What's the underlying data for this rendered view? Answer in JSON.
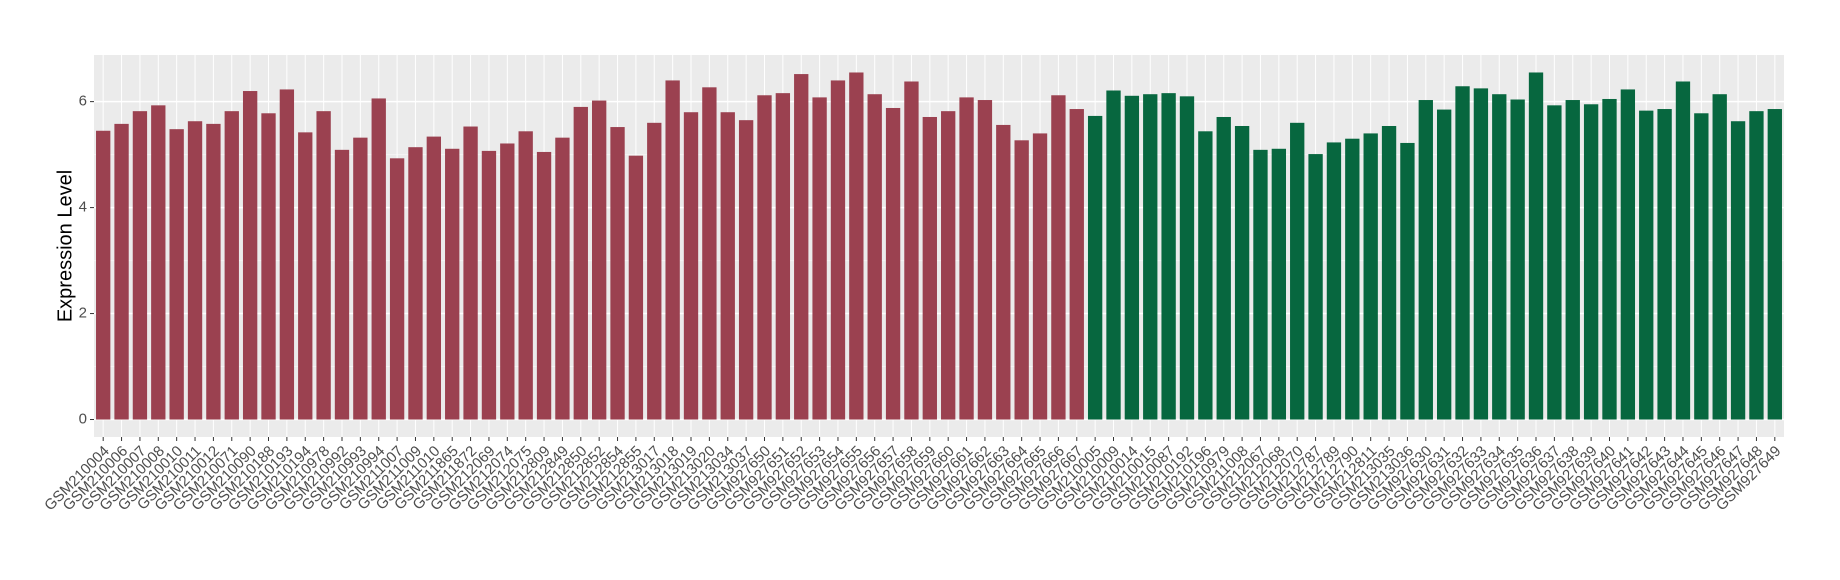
{
  "chart_data": {
    "type": "bar",
    "y_label": "Expression Level",
    "categories": [
      "GSM210004",
      "GSM210006",
      "GSM210007",
      "GSM210008",
      "GSM210010",
      "GSM210011",
      "GSM210012",
      "GSM210071",
      "GSM210090",
      "GSM210188",
      "GSM210193",
      "GSM210194",
      "GSM210978",
      "GSM210992",
      "GSM210993",
      "GSM210994",
      "GSM211007",
      "GSM211009",
      "GSM211010",
      "GSM211865",
      "GSM211872",
      "GSM212069",
      "GSM212074",
      "GSM212075",
      "GSM212809",
      "GSM212849",
      "GSM212850",
      "GSM212852",
      "GSM212854",
      "GSM212855",
      "GSM213017",
      "GSM213018",
      "GSM213019",
      "GSM213020",
      "GSM213034",
      "GSM213037",
      "GSM927650",
      "GSM927651",
      "GSM927652",
      "GSM927653",
      "GSM927654",
      "GSM927655",
      "GSM927656",
      "GSM927657",
      "GSM927658",
      "GSM927659",
      "GSM927660",
      "GSM927661",
      "GSM927662",
      "GSM927663",
      "GSM927664",
      "GSM927665",
      "GSM927666",
      "GSM927667",
      "GSM210005",
      "GSM210009",
      "GSM210014",
      "GSM210015",
      "GSM210087",
      "GSM210192",
      "GSM210196",
      "GSM210979",
      "GSM211008",
      "GSM212067",
      "GSM212068",
      "GSM212070",
      "GSM212787",
      "GSM212789",
      "GSM212790",
      "GSM212811",
      "GSM213035",
      "GSM213036",
      "GSM927630",
      "GSM927631",
      "GSM927632",
      "GSM927633",
      "GSM927634",
      "GSM927635",
      "GSM927636",
      "GSM927637",
      "GSM927638",
      "GSM927639",
      "GSM927640",
      "GSM927641",
      "GSM927642",
      "GSM927643",
      "GSM927644",
      "GSM927645",
      "GSM927646",
      "GSM927647",
      "GSM927648",
      "GSM927649"
    ],
    "values": [
      5.45,
      5.58,
      5.82,
      5.93,
      5.48,
      5.63,
      5.58,
      5.82,
      6.2,
      5.78,
      6.23,
      5.42,
      5.82,
      5.09,
      5.32,
      6.06,
      4.93,
      5.14,
      5.34,
      5.11,
      5.53,
      5.07,
      5.21,
      5.44,
      5.05,
      5.32,
      5.9,
      6.02,
      5.52,
      4.98,
      5.6,
      6.4,
      5.8,
      6.27,
      5.8,
      5.65,
      6.12,
      6.16,
      6.52,
      6.08,
      6.4,
      6.55,
      6.14,
      5.88,
      6.38,
      5.71,
      5.82,
      6.08,
      6.03,
      5.56,
      5.27,
      5.4,
      6.12,
      5.86,
      5.73,
      6.21,
      6.11,
      6.14,
      6.16,
      6.1,
      5.44,
      5.71,
      5.54,
      5.09,
      5.11,
      5.6,
      5.01,
      5.23,
      5.3,
      5.4,
      5.54,
      5.22,
      6.03,
      5.85,
      6.29,
      6.25,
      6.14,
      6.04,
      6.55,
      5.93,
      6.03,
      5.95,
      6.05,
      6.23,
      5.83,
      5.86,
      6.38,
      5.78,
      6.14,
      5.63,
      5.82,
      5.86
    ],
    "colors": [
      "#9b4150",
      "#9b4150",
      "#9b4150",
      "#9b4150",
      "#9b4150",
      "#9b4150",
      "#9b4150",
      "#9b4150",
      "#9b4150",
      "#9b4150",
      "#9b4150",
      "#9b4150",
      "#9b4150",
      "#9b4150",
      "#9b4150",
      "#9b4150",
      "#9b4150",
      "#9b4150",
      "#9b4150",
      "#9b4150",
      "#9b4150",
      "#9b4150",
      "#9b4150",
      "#9b4150",
      "#9b4150",
      "#9b4150",
      "#9b4150",
      "#9b4150",
      "#9b4150",
      "#9b4150",
      "#9b4150",
      "#9b4150",
      "#9b4150",
      "#9b4150",
      "#9b4150",
      "#9b4150",
      "#9b4150",
      "#9b4150",
      "#9b4150",
      "#9b4150",
      "#9b4150",
      "#9b4150",
      "#9b4150",
      "#9b4150",
      "#9b4150",
      "#9b4150",
      "#9b4150",
      "#9b4150",
      "#9b4150",
      "#9b4150",
      "#9b4150",
      "#9b4150",
      "#9b4150",
      "#9b4150",
      "#07673f",
      "#07673f",
      "#07673f",
      "#07673f",
      "#07673f",
      "#07673f",
      "#07673f",
      "#07673f",
      "#07673f",
      "#07673f",
      "#07673f",
      "#07673f",
      "#07673f",
      "#07673f",
      "#07673f",
      "#07673f",
      "#07673f",
      "#07673f",
      "#07673f",
      "#07673f",
      "#07673f",
      "#07673f",
      "#07673f",
      "#07673f",
      "#07673f",
      "#07673f",
      "#07673f",
      "#07673f",
      "#07673f",
      "#07673f",
      "#07673f",
      "#07673f",
      "#07673f",
      "#07673f",
      "#07673f",
      "#07673f",
      "#07673f",
      "#07673f"
    ],
    "ylim": [
      -0.33,
      6.88
    ],
    "yticks": [
      0,
      2,
      4,
      6
    ],
    "minor_yticks": [
      1,
      3,
      5
    ],
    "grid": true
  }
}
